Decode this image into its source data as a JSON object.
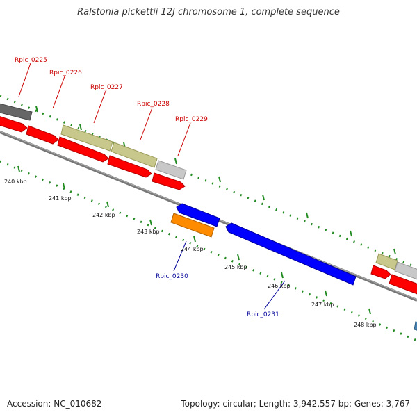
{
  "title": "Ralstonia pickettii 12J chromosome 1, complete sequence",
  "footer": {
    "accession": "Accession: NC_010682",
    "summary": "Topology: circular; Length: 3,942,557 bp; Genes: 3,767"
  },
  "colors": {
    "forward_gene": "#ff0000",
    "reverse_gene": "#0000ff",
    "gray_feature": "#c8c8c8",
    "dark_feature": "#666666",
    "khaki_feature": "#c8c88c",
    "orange_feature": "#ff8c00",
    "steel_feature": "#4682b4",
    "forward_label": "#cc0000",
    "reverse_label": "#000099",
    "tick": "#228b22",
    "backbone": "#808080"
  },
  "scale_labels": [
    "240 kbp",
    "241 kbp",
    "242 kbp",
    "243 kbp",
    "244 kbp",
    "245 kbp",
    "246 kbp",
    "247 kbp",
    "248 kbp"
  ],
  "gene_labels": {
    "forward": [
      "Rpic_0225",
      "Rpic_0226",
      "Rpic_0227",
      "Rpic_0228",
      "Rpic_0229"
    ],
    "reverse": [
      "Rpic_0230",
      "Rpic_0231"
    ]
  }
}
